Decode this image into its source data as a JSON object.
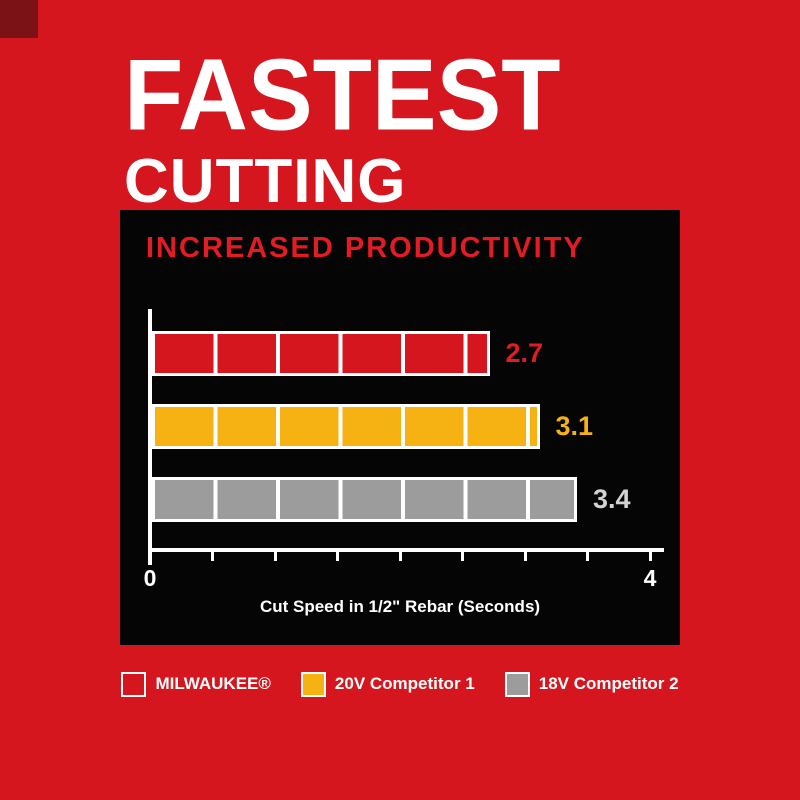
{
  "page": {
    "headline_line1": "FASTEST",
    "headline_line2": "CUTTING"
  },
  "chart": {
    "title": "INCREASED PRODUCTIVITY",
    "x_min_label": "0",
    "x_max_label": "4",
    "xlabel": "Cut Speed in 1/2\" Rebar (Seconds)"
  },
  "chart_data": {
    "type": "bar",
    "orientation": "horizontal",
    "title": "INCREASED PRODUCTIVITY",
    "xlabel": "Cut Speed in 1/2\" Rebar (Seconds)",
    "xlim": [
      0,
      4
    ],
    "tick_interval": 0.5,
    "segment_interval": 0.5,
    "categories": [
      "MILWAUKEE®",
      "20V Competitor 1",
      "18V Competitor 2"
    ],
    "values": [
      2.7,
      3.1,
      3.4
    ],
    "bar_colors": [
      "#d5161f",
      "#f6b213",
      "#9c9c9c"
    ],
    "value_label_colors": [
      "#e31b23",
      "#f6b213",
      "#d2d2d2"
    ],
    "legend_position": "bottom-outside",
    "grid": false
  },
  "legend": {
    "items": [
      {
        "label": "MILWAUKEE®",
        "color": "#d5161f"
      },
      {
        "label": "20V Competitor 1",
        "color": "#f6b213"
      },
      {
        "label": "18V Competitor 2",
        "color": "#9c9c9c"
      }
    ]
  },
  "colors": {
    "background": "#d5161f",
    "panel": "#050505",
    "accent_red": "#e31b23",
    "corner_square": "#7a1216"
  }
}
